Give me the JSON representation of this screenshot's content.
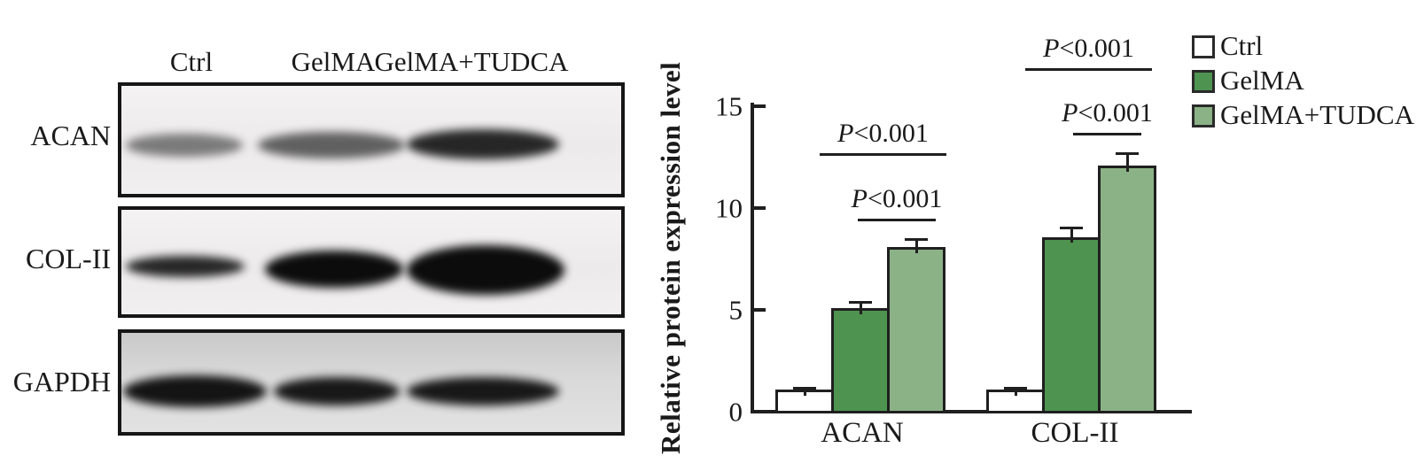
{
  "blot": {
    "lanes": [
      "Ctrl",
      "GelMA",
      "GelMA+TUDCA"
    ],
    "rows": [
      {
        "protein": "ACAN"
      },
      {
        "protein": "COL-II"
      },
      {
        "protein": "GAPDH"
      }
    ]
  },
  "chart_data": {
    "type": "bar",
    "title": "",
    "xlabel": "",
    "ylabel": "Relative protein expression level",
    "ylim": [
      0,
      15
    ],
    "yticks": [
      0,
      5,
      10,
      15
    ],
    "grid": false,
    "legend_position": "top-right",
    "categories": [
      "ACAN",
      "COL-II"
    ],
    "series": [
      {
        "name": "Ctrl",
        "fill": "#ffffff",
        "values": [
          1.0,
          1.0
        ],
        "errors": [
          0.1,
          0.08
        ]
      },
      {
        "name": "GelMA",
        "fill": "#4e9350",
        "values": [
          5.0,
          8.5
        ],
        "errors": [
          0.3,
          0.45
        ]
      },
      {
        "name": "GelMA+TUDCA",
        "fill": "#8bb286",
        "values": [
          8.0,
          12.0
        ],
        "errors": [
          0.4,
          0.6
        ]
      }
    ],
    "significance": [
      {
        "category": "ACAN",
        "between": [
          "Ctrl",
          "GelMA+TUDCA"
        ],
        "label": "P<0.001"
      },
      {
        "category": "ACAN",
        "between": [
          "GelMA",
          "GelMA+TUDCA"
        ],
        "label": "P<0.001"
      },
      {
        "category": "COL-II",
        "between": [
          "Ctrl",
          "GelMA+TUDCA"
        ],
        "label": "P<0.001"
      },
      {
        "category": "COL-II",
        "between": [
          "GelMA",
          "GelMA+TUDCA"
        ],
        "label": "P<0.001"
      }
    ]
  },
  "legend": {
    "items": [
      {
        "label": "Ctrl",
        "fill": "#ffffff"
      },
      {
        "label": "GelMA",
        "fill": "#4e9350"
      },
      {
        "label": "GelMA+TUDCA",
        "fill": "#8bb286"
      }
    ]
  },
  "colors": {
    "axis": "#1f1f1f",
    "green_dark": "#4e9350",
    "green_light": "#8bb286"
  }
}
